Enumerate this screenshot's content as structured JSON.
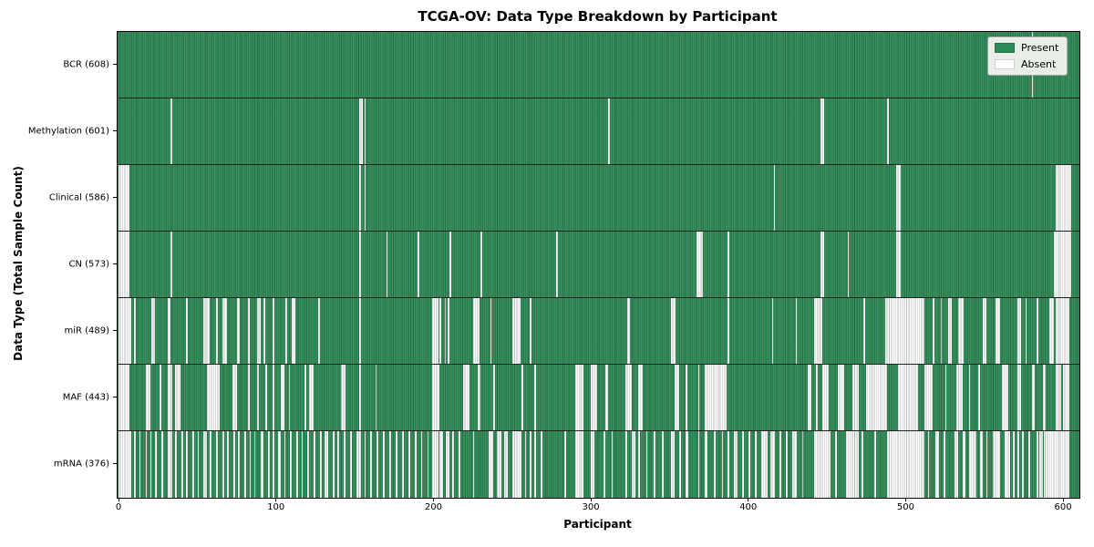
{
  "chart_data": {
    "type": "heatmap",
    "title": "TCGA-OV: Data Type Breakdown by Participant",
    "xlabel": "Participant",
    "ylabel": "Data Type (Total Sample Count)",
    "n_participants": 609,
    "x_range": [
      0,
      609
    ],
    "x_ticks": [
      0,
      100,
      200,
      300,
      400,
      500,
      600
    ],
    "grid": false,
    "legend_position": "upper right",
    "legend": [
      {
        "label": "Present",
        "color": "#2e8b57"
      },
      {
        "label": "Absent",
        "color": "#ffffff"
      }
    ],
    "colors": {
      "present": "#2e8b57",
      "absent": "#ffffff",
      "row_separator": "#1c241f"
    },
    "rows": [
      {
        "name": "BCR",
        "label": "BCR (608)",
        "present_count": 608,
        "absent_segments": [
          [
            580,
            581
          ]
        ]
      },
      {
        "name": "Methylation",
        "label": "Methylation (601)",
        "present_count": 601,
        "absent_segments": [
          [
            33,
            34
          ],
          [
            153,
            155
          ],
          [
            156,
            157
          ],
          [
            311,
            312
          ],
          [
            446,
            448
          ],
          [
            488,
            489
          ]
        ]
      },
      {
        "name": "Clinical",
        "label": "Clinical (586)",
        "present_count": 586,
        "absent_segments": [
          [
            0,
            7
          ],
          [
            153,
            154
          ],
          [
            156,
            157
          ],
          [
            416,
            417
          ],
          [
            494,
            497
          ],
          [
            595,
            605
          ]
        ]
      },
      {
        "name": "CN",
        "label": "CN (573)",
        "present_count": 573,
        "absent_segments": [
          [
            0,
            7
          ],
          [
            33,
            34
          ],
          [
            153,
            154
          ],
          [
            170,
            171
          ],
          [
            190,
            191
          ],
          [
            210,
            211
          ],
          [
            230,
            231
          ],
          [
            278,
            279
          ],
          [
            367,
            371
          ],
          [
            387,
            388
          ],
          [
            446,
            448
          ],
          [
            463,
            464
          ],
          [
            494,
            497
          ],
          [
            594,
            605
          ]
        ]
      },
      {
        "name": "miR",
        "label": "miR (489)",
        "present_count": 489,
        "absent_segments": [
          [
            0,
            8
          ],
          [
            10,
            11
          ],
          [
            21,
            23
          ],
          [
            31,
            33
          ],
          [
            43,
            44
          ],
          [
            54,
            58
          ],
          [
            62,
            63
          ],
          [
            66,
            69
          ],
          [
            75,
            77
          ],
          [
            82,
            83
          ],
          [
            88,
            90
          ],
          [
            92,
            93
          ],
          [
            98,
            99
          ],
          [
            106,
            107
          ],
          [
            110,
            112
          ],
          [
            127,
            128
          ],
          [
            153,
            154
          ],
          [
            199,
            203
          ],
          [
            204,
            205
          ],
          [
            207,
            208
          ],
          [
            209,
            210
          ],
          [
            225,
            229
          ],
          [
            236,
            237
          ],
          [
            250,
            255
          ],
          [
            261,
            262
          ],
          [
            323,
            325
          ],
          [
            351,
            354
          ],
          [
            387,
            388
          ],
          [
            415,
            416
          ],
          [
            430,
            431
          ],
          [
            442,
            447
          ],
          [
            473,
            474
          ],
          [
            487,
            512
          ],
          [
            517,
            518
          ],
          [
            522,
            523
          ],
          [
            527,
            529
          ],
          [
            533,
            537
          ],
          [
            549,
            551
          ],
          [
            557,
            560
          ],
          [
            571,
            573
          ],
          [
            576,
            577
          ],
          [
            583,
            584
          ],
          [
            591,
            594
          ],
          [
            595,
            604
          ]
        ]
      },
      {
        "name": "MAF",
        "label": "MAF (443)",
        "present_count": 443,
        "absent_segments": [
          [
            0,
            7
          ],
          [
            17,
            20
          ],
          [
            26,
            27
          ],
          [
            31,
            34
          ],
          [
            36,
            39
          ],
          [
            56,
            64
          ],
          [
            72,
            75
          ],
          [
            82,
            83
          ],
          [
            88,
            89
          ],
          [
            93,
            94
          ],
          [
            98,
            99
          ],
          [
            103,
            105
          ],
          [
            108,
            109
          ],
          [
            118,
            119
          ],
          [
            121,
            124
          ],
          [
            141,
            144
          ],
          [
            153,
            154
          ],
          [
            163,
            164
          ],
          [
            199,
            204
          ],
          [
            219,
            223
          ],
          [
            228,
            230
          ],
          [
            238,
            239
          ],
          [
            256,
            257
          ],
          [
            264,
            265
          ],
          [
            290,
            295
          ],
          [
            300,
            304
          ],
          [
            309,
            311
          ],
          [
            322,
            326
          ],
          [
            330,
            333
          ],
          [
            353,
            356
          ],
          [
            360,
            361
          ],
          [
            368,
            369
          ],
          [
            372,
            386
          ],
          [
            438,
            440
          ],
          [
            443,
            444
          ],
          [
            447,
            451
          ],
          [
            457,
            461
          ],
          [
            466,
            470
          ],
          [
            475,
            488
          ],
          [
            495,
            508
          ],
          [
            512,
            517
          ],
          [
            525,
            526
          ],
          [
            532,
            536
          ],
          [
            540,
            541
          ],
          [
            546,
            547
          ],
          [
            561,
            565
          ],
          [
            571,
            573
          ],
          [
            580,
            582
          ],
          [
            587,
            589
          ],
          [
            595,
            599
          ],
          [
            600,
            604
          ]
        ]
      },
      {
        "name": "mRNA",
        "label": "mRNA (376)",
        "present_count": 376,
        "absent_segments": [
          [
            0,
            8
          ],
          [
            10,
            11
          ],
          [
            13,
            14
          ],
          [
            17,
            18
          ],
          [
            20,
            21
          ],
          [
            23,
            24
          ],
          [
            27,
            28
          ],
          [
            31,
            34
          ],
          [
            36,
            37
          ],
          [
            40,
            41
          ],
          [
            43,
            44
          ],
          [
            47,
            48
          ],
          [
            50,
            51
          ],
          [
            54,
            56
          ],
          [
            58,
            59
          ],
          [
            62,
            63
          ],
          [
            66,
            67
          ],
          [
            69,
            70
          ],
          [
            73,
            74
          ],
          [
            76,
            77
          ],
          [
            80,
            81
          ],
          [
            83,
            84
          ],
          [
            86,
            87
          ],
          [
            90,
            92
          ],
          [
            95,
            96
          ],
          [
            98,
            99
          ],
          [
            101,
            103
          ],
          [
            105,
            106
          ],
          [
            109,
            110
          ],
          [
            113,
            114
          ],
          [
            116,
            117
          ],
          [
            120,
            121
          ],
          [
            124,
            125
          ],
          [
            128,
            129
          ],
          [
            131,
            133
          ],
          [
            136,
            137
          ],
          [
            139,
            140
          ],
          [
            143,
            144
          ],
          [
            147,
            148
          ],
          [
            151,
            154
          ],
          [
            156,
            157
          ],
          [
            160,
            161
          ],
          [
            164,
            165
          ],
          [
            168,
            169
          ],
          [
            172,
            173
          ],
          [
            176,
            177
          ],
          [
            180,
            181
          ],
          [
            184,
            185
          ],
          [
            188,
            189
          ],
          [
            192,
            193
          ],
          [
            196,
            197
          ],
          [
            199,
            203
          ],
          [
            204,
            206
          ],
          [
            208,
            210
          ],
          [
            212,
            213
          ],
          [
            216,
            217
          ],
          [
            225,
            226
          ],
          [
            235,
            238
          ],
          [
            240,
            243
          ],
          [
            245,
            247
          ],
          [
            250,
            256
          ],
          [
            258,
            259
          ],
          [
            261,
            262
          ],
          [
            264,
            265
          ],
          [
            268,
            269
          ],
          [
            283,
            284
          ],
          [
            290,
            295
          ],
          [
            300,
            302
          ],
          [
            308,
            309
          ],
          [
            313,
            314
          ],
          [
            322,
            323
          ],
          [
            326,
            328
          ],
          [
            330,
            331
          ],
          [
            335,
            336
          ],
          [
            340,
            341
          ],
          [
            345,
            346
          ],
          [
            351,
            353
          ],
          [
            356,
            357
          ],
          [
            360,
            362
          ],
          [
            368,
            369
          ],
          [
            372,
            374
          ],
          [
            378,
            379
          ],
          [
            383,
            384
          ],
          [
            387,
            388
          ],
          [
            391,
            393
          ],
          [
            396,
            397
          ],
          [
            400,
            401
          ],
          [
            404,
            405
          ],
          [
            408,
            412
          ],
          [
            414,
            417
          ],
          [
            420,
            421
          ],
          [
            424,
            425
          ],
          [
            428,
            431
          ],
          [
            434,
            435
          ],
          [
            442,
            452
          ],
          [
            455,
            456
          ],
          [
            462,
            470
          ],
          [
            472,
            473
          ],
          [
            480,
            481
          ],
          [
            488,
            512
          ],
          [
            514,
            515
          ],
          [
            519,
            521
          ],
          [
            524,
            525
          ],
          [
            531,
            533
          ],
          [
            536,
            538
          ],
          [
            540,
            545
          ],
          [
            547,
            549
          ],
          [
            551,
            552
          ],
          [
            555,
            560
          ],
          [
            563,
            566
          ],
          [
            568,
            569
          ],
          [
            571,
            572
          ],
          [
            574,
            575
          ],
          [
            578,
            579
          ],
          [
            583,
            584
          ],
          [
            585,
            587
          ],
          [
            588,
            604
          ]
        ]
      }
    ]
  }
}
